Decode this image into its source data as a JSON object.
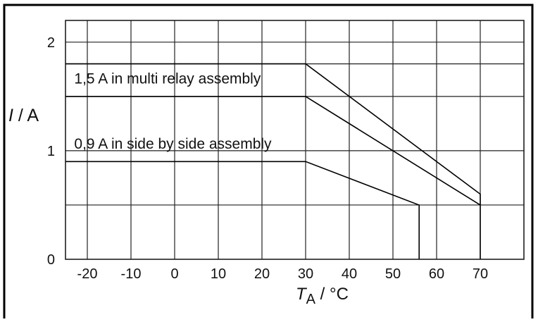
{
  "chart_data": {
    "type": "line",
    "xlabel_main": "T",
    "xlabel_sub": "A",
    "xlabel_unit": " / °C",
    "ylabel_main": "I",
    "ylabel_unit": " / A",
    "xlim": [
      -25,
      80
    ],
    "ylim": [
      0,
      2.2
    ],
    "grid": true,
    "grid_x": [
      -20,
      -10,
      0,
      10,
      20,
      30,
      40,
      50,
      60,
      70
    ],
    "grid_y": [
      0.5,
      1,
      1.5,
      1.8,
      2
    ],
    "x_ticks": [
      -20,
      -10,
      0,
      10,
      20,
      30,
      40,
      50,
      60,
      70
    ],
    "x_tick_labels": [
      "-20",
      "-10",
      "0",
      "10",
      "20",
      "30",
      "40",
      "50",
      "60",
      "70"
    ],
    "y_ticks": [
      0,
      1,
      2
    ],
    "y_tick_labels": [
      "0",
      "1",
      "2"
    ],
    "annotations": [
      {
        "text": "1,5 A in multi relay assembly",
        "x": -23,
        "y": 1.62
      },
      {
        "text": "0,9 A in side by side assembly",
        "x": -23,
        "y": 1.02
      }
    ],
    "series": [
      {
        "x": [
          -25,
          30,
          70,
          70
        ],
        "y": [
          1.8,
          1.8,
          0.6,
          0.5
        ]
      },
      {
        "x": [
          -25,
          30,
          70,
          70,
          70
        ],
        "y": [
          1.5,
          1.5,
          0.5,
          0.5,
          0
        ]
      },
      {
        "x": [
          -25,
          30,
          56,
          56
        ],
        "y": [
          0.9,
          0.9,
          0.5,
          0
        ]
      }
    ]
  }
}
